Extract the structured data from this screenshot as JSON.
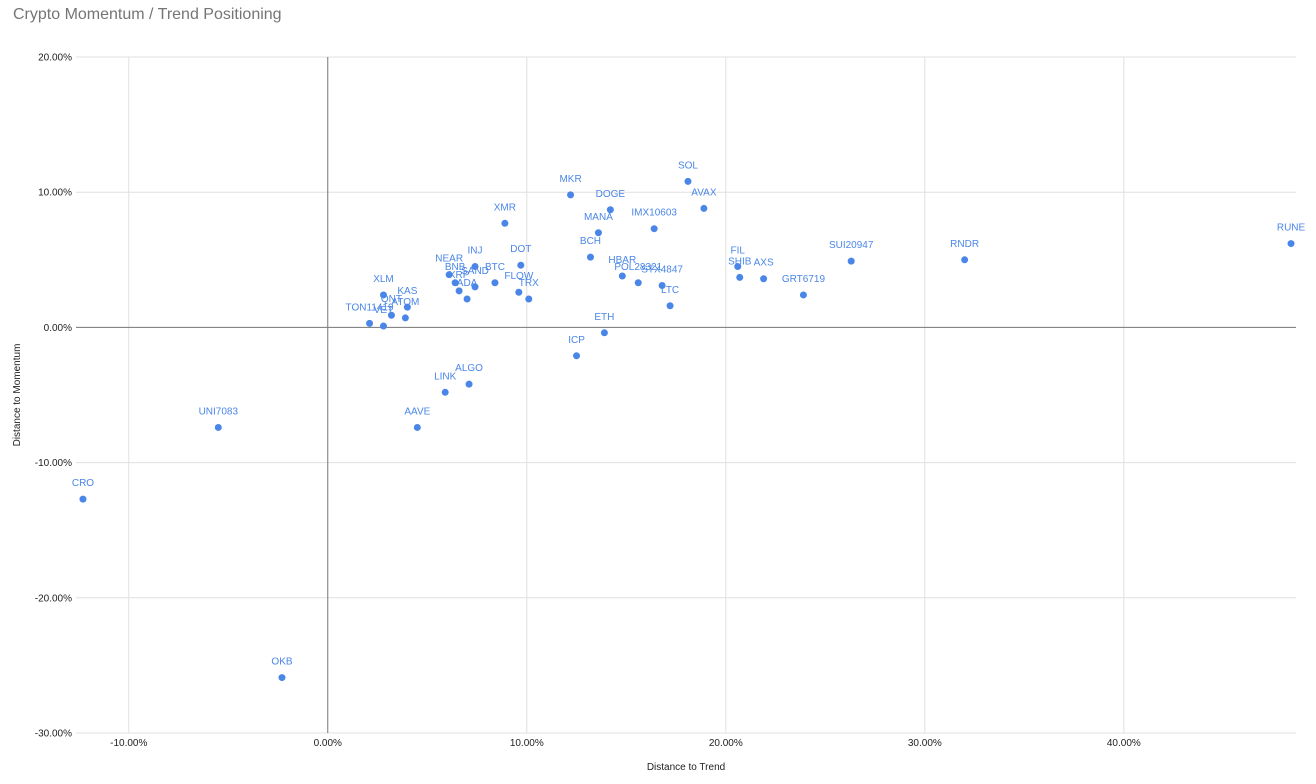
{
  "chart_data": {
    "type": "scatter",
    "title": "Crypto Momentum / Trend Positioning",
    "xlabel": "Distance to Trend",
    "ylabel": "Distance to Momentum",
    "xlim": [
      -0.1265,
      0.4865
    ],
    "ylim": [
      -0.3,
      0.2
    ],
    "x_ticks": [
      -0.1,
      0.0,
      0.1,
      0.2,
      0.3,
      0.4
    ],
    "x_tick_labels": [
      "-10.00%",
      "0.00%",
      "10.00%",
      "20.00%",
      "30.00%",
      "40.00%"
    ],
    "y_ticks": [
      0.2,
      0.1,
      0.0,
      -0.1,
      -0.2,
      -0.3
    ],
    "y_tick_labels": [
      "20.00%",
      "10.00%",
      "0.00%",
      "-10.00%",
      "-20.00%",
      "-30.00%"
    ],
    "grid": true,
    "point_color": "#4a86e8",
    "points": [
      {
        "label": "CRO",
        "x": -0.123,
        "y": -0.127
      },
      {
        "label": "UNI7083",
        "x": -0.055,
        "y": -0.074
      },
      {
        "label": "OKB",
        "x": -0.023,
        "y": -0.259
      },
      {
        "label": "TON11419",
        "x": 0.021,
        "y": 0.003
      },
      {
        "label": "XLM",
        "x": 0.028,
        "y": 0.024
      },
      {
        "label": "VET",
        "x": 0.028,
        "y": 0.001
      },
      {
        "label": "QNT",
        "x": 0.032,
        "y": 0.009
      },
      {
        "label": "ATOM",
        "x": 0.039,
        "y": 0.007
      },
      {
        "label": "KAS",
        "x": 0.04,
        "y": 0.015
      },
      {
        "label": "AAVE",
        "x": 0.045,
        "y": -0.074
      },
      {
        "label": "LINK",
        "x": 0.059,
        "y": -0.048
      },
      {
        "label": "NEAR",
        "x": 0.061,
        "y": 0.039
      },
      {
        "label": "BNB",
        "x": 0.064,
        "y": 0.033
      },
      {
        "label": "XRP",
        "x": 0.066,
        "y": 0.027
      },
      {
        "label": "ADA",
        "x": 0.07,
        "y": 0.021
      },
      {
        "label": "ALGO",
        "x": 0.071,
        "y": -0.042
      },
      {
        "label": "SAND",
        "x": 0.074,
        "y": 0.03
      },
      {
        "label": "INJ",
        "x": 0.074,
        "y": 0.045
      },
      {
        "label": "BTC",
        "x": 0.084,
        "y": 0.033
      },
      {
        "label": "XMR",
        "x": 0.089,
        "y": 0.077
      },
      {
        "label": "FLOW",
        "x": 0.096,
        "y": 0.026
      },
      {
        "label": "DOT",
        "x": 0.097,
        "y": 0.046
      },
      {
        "label": "TRX",
        "x": 0.101,
        "y": 0.021
      },
      {
        "label": "MKR",
        "x": 0.122,
        "y": 0.098
      },
      {
        "label": "ICP",
        "x": 0.125,
        "y": -0.021
      },
      {
        "label": "BCH",
        "x": 0.132,
        "y": 0.052
      },
      {
        "label": "MANA",
        "x": 0.136,
        "y": 0.07
      },
      {
        "label": "ETH",
        "x": 0.139,
        "y": -0.004
      },
      {
        "label": "DOGE",
        "x": 0.142,
        "y": 0.087
      },
      {
        "label": "HBAR",
        "x": 0.148,
        "y": 0.038
      },
      {
        "label": "POL28321",
        "x": 0.156,
        "y": 0.033
      },
      {
        "label": "IMX10603",
        "x": 0.164,
        "y": 0.073
      },
      {
        "label": "STX4847",
        "x": 0.168,
        "y": 0.031
      },
      {
        "label": "LTC",
        "x": 0.172,
        "y": 0.016
      },
      {
        "label": "SOL",
        "x": 0.181,
        "y": 0.108
      },
      {
        "label": "AVAX",
        "x": 0.189,
        "y": 0.088
      },
      {
        "label": "FIL",
        "x": 0.206,
        "y": 0.045
      },
      {
        "label": "SHIB",
        "x": 0.207,
        "y": 0.037
      },
      {
        "label": "AXS",
        "x": 0.219,
        "y": 0.036
      },
      {
        "label": "GRT6719",
        "x": 0.239,
        "y": 0.024
      },
      {
        "label": "SUI20947",
        "x": 0.263,
        "y": 0.049
      },
      {
        "label": "RNDR",
        "x": 0.32,
        "y": 0.05
      },
      {
        "label": "RUNE",
        "x": 0.484,
        "y": 0.062
      }
    ]
  }
}
